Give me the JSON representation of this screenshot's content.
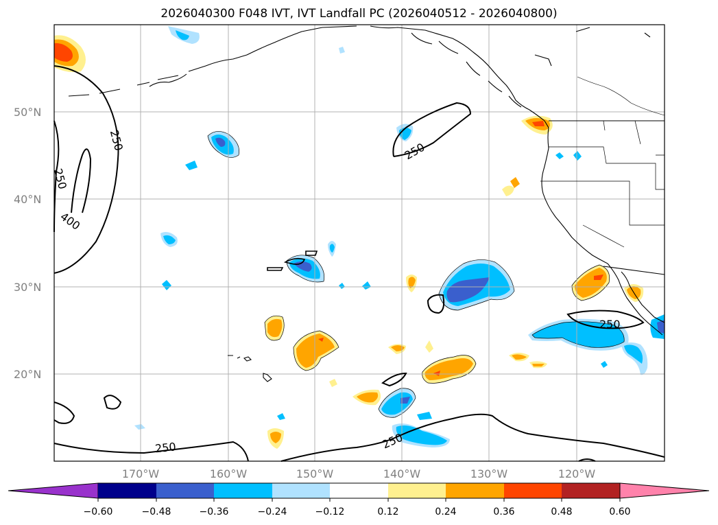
{
  "title": "2026040300 F048 IVT, IVT Landfall PC (2026040512 - 2026040800)",
  "lat_labels": [
    "50°N",
    "40°N",
    "30°N",
    "20°N"
  ],
  "lon_labels": [
    "170°W",
    "160°W",
    "150°W",
    "140°W",
    "130°W",
    "120°W"
  ],
  "contour_labels": [
    "250",
    "250",
    "400",
    "250",
    "250",
    "250",
    "250"
  ],
  "colorbar": {
    "ticks": [
      "−0.60",
      "−0.48",
      "−0.36",
      "−0.24",
      "−0.12",
      "0.12",
      "0.24",
      "0.36",
      "0.48",
      "0.60"
    ],
    "colors": [
      "#9932cc",
      "#00008b",
      "#3a5fcd",
      "#00bfff",
      "#b0e2ff",
      "#ffffff",
      "#fff08f",
      "#ffa500",
      "#ff4500",
      "#b22222",
      "#ff82ab"
    ]
  },
  "colors": {
    "grid": "#b0b0b0",
    "axis_label": "#808080",
    "coast": "#000000"
  }
}
